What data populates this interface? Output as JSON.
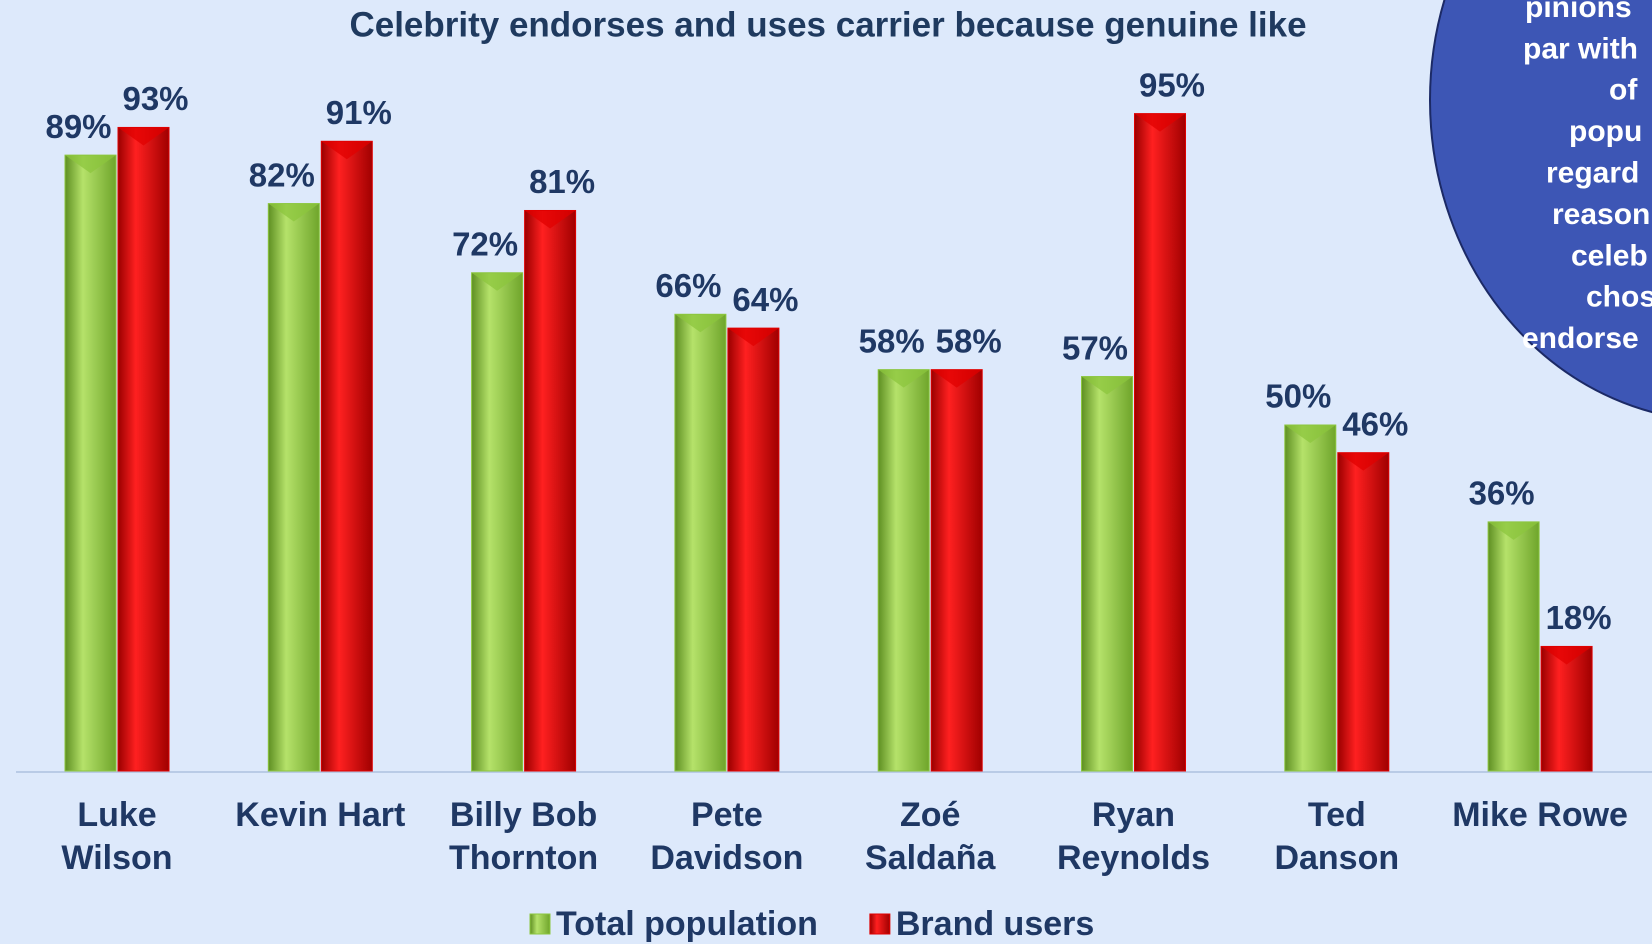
{
  "chart_data": {
    "type": "bar",
    "title": "Celebrity endorses and uses carrier because genuine like",
    "categories": [
      "Luke\nWilson",
      "Kevin Hart",
      "Billy Bob\nThornton",
      "Pete\nDavidson",
      "Zoé\nSaldaña",
      "Ryan\nReynolds",
      "Ted\nDanson",
      "Mike Rowe"
    ],
    "series": [
      {
        "name": "Total population",
        "color": "#8cc63e",
        "values": [
          89,
          82,
          72,
          66,
          58,
          57,
          50,
          36
        ],
        "value_labels": [
          "89%",
          "82%",
          "72%",
          "66%",
          "58%",
          "57%",
          "50%",
          "36%"
        ]
      },
      {
        "name": "Brand users",
        "color": "#e00000",
        "values": [
          93,
          91,
          81,
          64,
          58,
          95,
          46,
          18
        ],
        "value_labels": [
          "93%",
          "91%",
          "81%",
          "64%",
          "58%",
          "95%",
          "46%",
          "18%"
        ]
      }
    ],
    "ylim": [
      0,
      100
    ],
    "annotation": [
      "pinions",
      "par with",
      "of",
      "popu",
      "regard",
      "reason",
      "celeb",
      "chos",
      "endorse"
    ]
  }
}
